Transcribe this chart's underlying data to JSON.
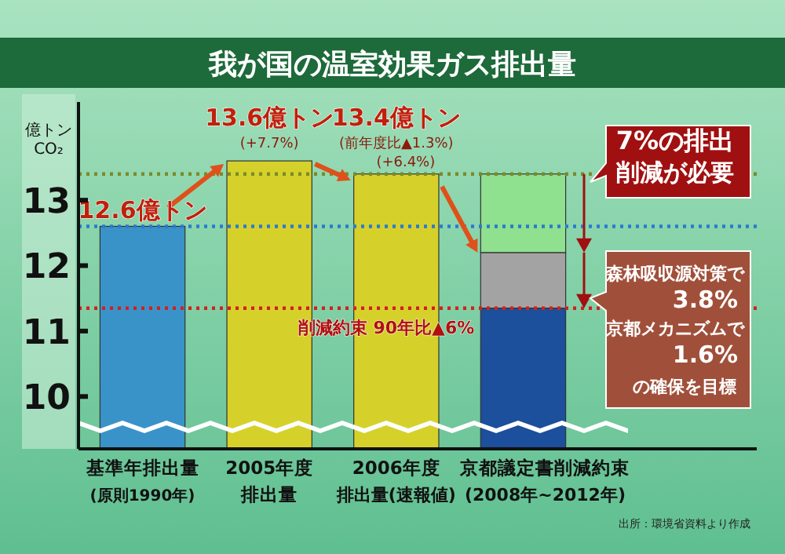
{
  "chart_data": {
    "type": "bar",
    "title": "我が国の温室効果ガス排出量",
    "ylabel": "億トン\nCO₂",
    "categories": [
      "基準年排出量",
      "2005年度",
      "2006年度",
      "京都議定書削減約束"
    ],
    "stacked": true,
    "series": [
      {
        "colors": [
          "#3a93c8",
          "#d6d12a",
          "#d6d12a",
          "#1c4f9c"
        ],
        "values": [
          12.6,
          13.6,
          13.4,
          11.35
        ],
        "value_labels": [
          "12.6億トン",
          "13.6億トン",
          "13.4億トン",
          null
        ]
      },
      {
        "color": "#a3a3a3",
        "base": [
          null,
          null,
          null,
          11.35
        ],
        "values": [
          null,
          null,
          null,
          0.85
        ]
      },
      {
        "color": "#8fe08f",
        "base": [
          null,
          null,
          null,
          12.2
        ],
        "values": [
          null,
          null,
          null,
          1.2
        ]
      }
    ],
    "ylim": [
      9.2,
      14.5
    ],
    "yticks": [
      10,
      11,
      12,
      13
    ],
    "ref_lines": [
      {
        "axis": "y",
        "value": 13.4,
        "color": "#7a8a2a",
        "line_style": "dotted"
      },
      {
        "axis": "y",
        "value": 12.6,
        "color": "#2a7ad0",
        "line_style": "dotted"
      },
      {
        "axis": "y",
        "value": 11.35,
        "color": "#d02020",
        "line_style": "dotted",
        "label": "削減約束 90年比▲6%"
      }
    ],
    "annotations": [
      "(+7.7%)",
      "(前年度比▲1.3%)",
      "(+6.4%)",
      "7%の排出",
      "削減が必要",
      "森林吸収源対策で",
      "3.8%",
      "京都メカニズムで",
      "1.6%",
      "の確保を目標",
      "(原則1990年)",
      "排出量",
      "排出量(速報値)",
      "(2008年~2012年)",
      "出所：環境省資料より作成"
    ]
  }
}
